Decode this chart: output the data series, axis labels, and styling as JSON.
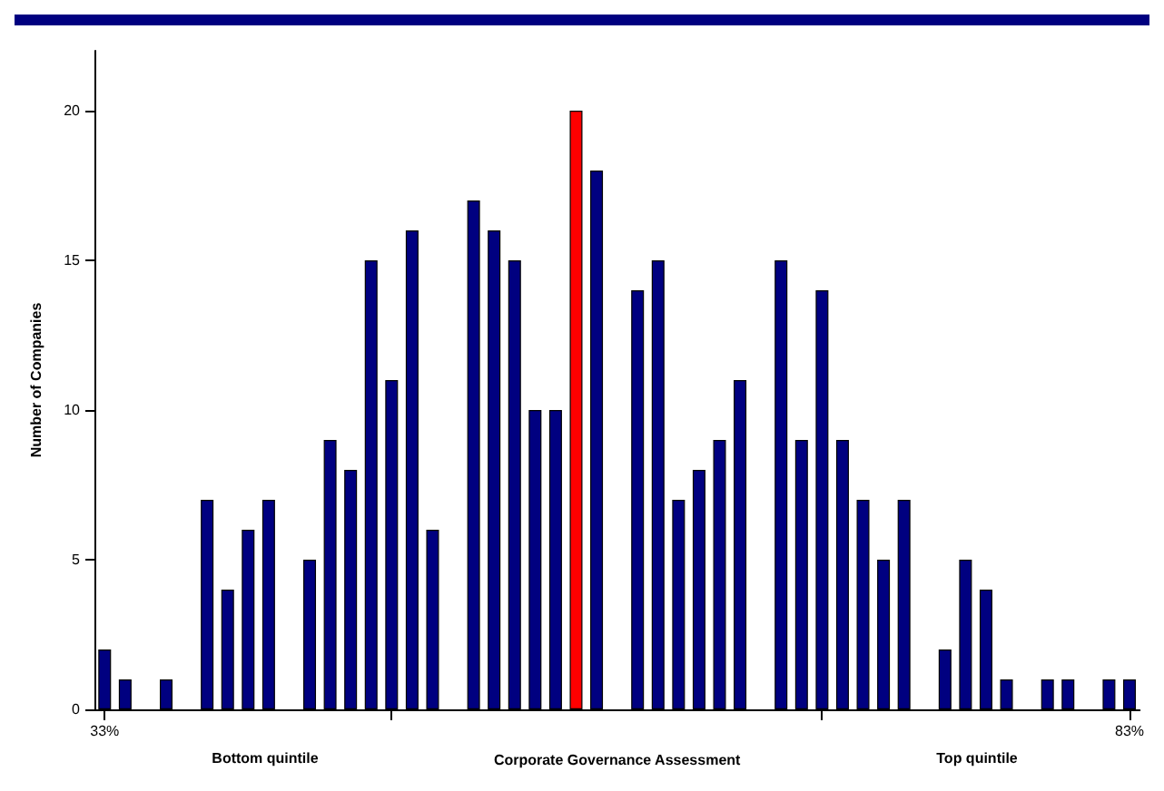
{
  "chart_data": {
    "type": "bar",
    "xlabel": "Corporate Governance Assessment",
    "ylabel": "Number of Companies",
    "x": [
      33,
      34,
      35,
      36,
      37,
      38,
      39,
      40,
      41,
      42,
      43,
      44,
      45,
      46,
      47,
      48,
      49,
      50,
      51,
      52,
      53,
      54,
      55,
      56,
      57,
      58,
      59,
      60,
      61,
      62,
      63,
      64,
      65,
      66,
      67,
      68,
      69,
      70,
      71,
      72,
      73,
      74,
      75,
      76,
      77,
      78,
      79,
      80,
      81,
      82,
      83
    ],
    "values": [
      2,
      1,
      0,
      1,
      0,
      7,
      4,
      6,
      7,
      0,
      5,
      9,
      8,
      15,
      11,
      16,
      6,
      0,
      17,
      16,
      15,
      10,
      10,
      20,
      18,
      0,
      14,
      15,
      7,
      8,
      9,
      11,
      0,
      15,
      9,
      14,
      9,
      7,
      5,
      7,
      0,
      2,
      5,
      4,
      1,
      0,
      1,
      1,
      0,
      1,
      1
    ],
    "colors": [
      "#000080",
      "#000080",
      "#000080",
      "#000080",
      "#000080",
      "#000080",
      "#000080",
      "#000080",
      "#000080",
      "#000080",
      "#000080",
      "#000080",
      "#000080",
      "#000080",
      "#000080",
      "#000080",
      "#000080",
      "#000080",
      "#000080",
      "#000080",
      "#000080",
      "#000080",
      "#000080",
      "#ff0000",
      "#000080",
      "#000080",
      "#000080",
      "#000080",
      "#000080",
      "#000080",
      "#000080",
      "#000080",
      "#000080",
      "#000080",
      "#000080",
      "#000080",
      "#000080",
      "#000080",
      "#000080",
      "#000080",
      "#000080",
      "#000080",
      "#000080",
      "#000080",
      "#000080",
      "#000080",
      "#000080",
      "#000080",
      "#000080",
      "#000080",
      "#000080"
    ],
    "xlim": [
      32.5,
      83.5
    ],
    "xticks": [
      {
        "value": 33,
        "label": "33%"
      },
      {
        "value": 47,
        "label": null
      },
      {
        "value": 68,
        "label": null
      },
      {
        "value": 83,
        "label": "83%"
      }
    ],
    "ylim": [
      0,
      22
    ],
    "yticks": [
      0,
      5,
      10,
      15,
      20
    ],
    "annotations": [
      "Bottom quintile",
      "Top quintile"
    ],
    "grid": false
  }
}
